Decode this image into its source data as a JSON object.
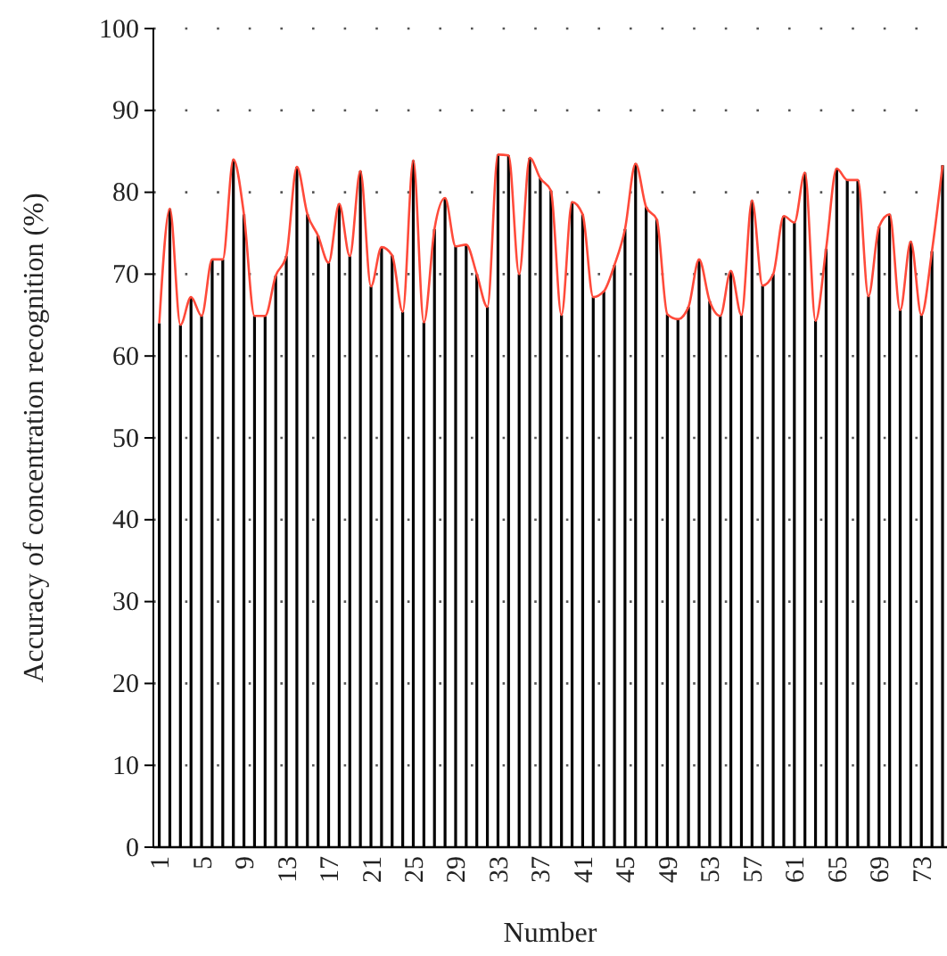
{
  "chart_data": {
    "type": "bar",
    "xlabel": "Number",
    "ylabel": "Accuracy of concentration recognition (%)",
    "categories": [
      "1",
      null,
      null,
      null,
      "5",
      null,
      null,
      null,
      "9",
      null,
      null,
      null,
      "13",
      null,
      null,
      null,
      "17",
      null,
      null,
      null,
      "21",
      null,
      null,
      null,
      "25",
      null,
      null,
      null,
      "29",
      null,
      null,
      null,
      "33",
      null,
      null,
      null,
      "37",
      null,
      null,
      null,
      "41",
      null,
      null,
      null,
      "45",
      null,
      null,
      null,
      "49",
      null,
      null,
      null,
      "53",
      null,
      null,
      null,
      "57",
      null,
      null,
      null,
      "61",
      null,
      null,
      null,
      "65",
      null,
      null,
      null,
      "69",
      null,
      null,
      null,
      "73",
      null,
      null
    ],
    "series": [
      {
        "color": "#000000",
        "values": [
          64.0,
          78.0,
          63.8,
          67.2,
          64.9,
          71.8,
          71.8,
          84.0,
          77.3,
          64.9,
          64.9,
          69.8,
          72.2,
          83.1,
          77.3,
          74.7,
          71.4,
          78.6,
          72.2,
          82.6,
          68.5,
          73.3,
          72.3,
          65.4,
          83.9,
          64.1,
          75.5,
          79.3,
          73.4,
          73.6,
          70.0,
          66.0,
          84.6,
          84.5,
          70.0,
          84.2,
          81.7,
          80.2,
          65.0,
          78.8,
          77.3,
          67.2,
          67.9,
          71.1,
          75.5,
          83.5,
          78.2,
          76.7,
          65.1,
          64.5,
          66.0,
          71.8,
          66.7,
          64.9,
          70.4,
          65.0,
          79.0,
          68.6,
          70.0,
          77.1,
          76.3,
          82.4,
          64.3,
          73.1,
          82.9,
          81.5,
          81.5,
          67.3,
          75.8,
          77.3,
          65.6,
          74.0,
          65.0,
          72.8,
          83.3
        ]
      },
      {
        "type": "line",
        "color": "#ff4a3a",
        "values": [
          64.0,
          78.0,
          63.8,
          67.2,
          64.9,
          71.8,
          71.8,
          84.0,
          77.3,
          64.9,
          64.9,
          69.8,
          72.2,
          83.1,
          77.3,
          74.7,
          71.4,
          78.6,
          72.2,
          82.6,
          68.5,
          73.3,
          72.3,
          65.4,
          83.9,
          64.1,
          75.5,
          79.3,
          73.4,
          73.6,
          70.0,
          66.0,
          84.6,
          84.5,
          70.0,
          84.2,
          81.7,
          80.2,
          65.0,
          78.8,
          77.3,
          67.2,
          67.9,
          71.1,
          75.5,
          83.5,
          78.2,
          76.7,
          65.1,
          64.5,
          66.0,
          71.8,
          66.7,
          64.9,
          70.4,
          65.0,
          79.0,
          68.6,
          70.0,
          77.1,
          76.3,
          82.4,
          64.3,
          73.1,
          82.9,
          81.5,
          81.5,
          67.3,
          75.8,
          77.3,
          65.6,
          74.0,
          65.0,
          72.8,
          83.3
        ]
      }
    ],
    "ylim": [
      0,
      100
    ],
    "yticks": [
      0,
      10,
      20,
      30,
      40,
      50,
      60,
      70,
      80,
      90,
      100
    ],
    "grid": "y",
    "line_style": "solid",
    "marker": "none"
  }
}
